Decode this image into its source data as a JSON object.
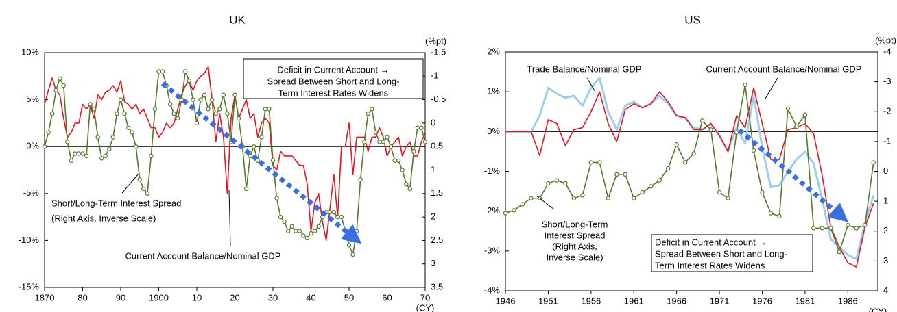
{
  "chart_data": [
    {
      "type": "line",
      "title": "UK",
      "x": [
        1870,
        1871,
        1872,
        1873,
        1874,
        1875,
        1876,
        1877,
        1878,
        1879,
        1880,
        1881,
        1882,
        1883,
        1884,
        1885,
        1886,
        1887,
        1888,
        1889,
        1890,
        1891,
        1892,
        1893,
        1894,
        1895,
        1896,
        1897,
        1898,
        1899,
        1900,
        1901,
        1902,
        1903,
        1904,
        1905,
        1906,
        1907,
        1908,
        1909,
        1910,
        1911,
        1912,
        1913,
        1914,
        1915,
        1916,
        1917,
        1918,
        1919,
        1920,
        1921,
        1922,
        1923,
        1924,
        1925,
        1926,
        1927,
        1928,
        1929,
        1930,
        1931,
        1932,
        1933,
        1934,
        1935,
        1936,
        1937,
        1938,
        1939,
        1940,
        1941,
        1942,
        1943,
        1944,
        1945,
        1946,
        1947,
        1948,
        1949,
        1950,
        1951,
        1952,
        1953,
        1954,
        1955,
        1956,
        1957,
        1958,
        1959,
        1960,
        1961,
        1962,
        1963,
        1964,
        1965,
        1966,
        1967,
        1968,
        1969,
        1970
      ],
      "series": [
        {
          "name": "Current Account Balance/Nominal GDP",
          "color": "#e8141c",
          "values": [
            4.5,
            6,
            7.3,
            6,
            5.5,
            3,
            1,
            1.5,
            2.5,
            2.5,
            4.5,
            4,
            4.5,
            3,
            5.5,
            5,
            5.8,
            6,
            6.5,
            5.8,
            7,
            4.8,
            4.5,
            4,
            4.5,
            3.5,
            4,
            3,
            2,
            2,
            1,
            1.5,
            2.5,
            2,
            2.5,
            4,
            5.5,
            6.5,
            7,
            6,
            7,
            7.5,
            7.8,
            8.5,
            5,
            0.5,
            3.5,
            1,
            -5,
            3,
            5.5,
            3,
            4,
            5,
            3,
            3.5,
            1,
            2.5,
            3,
            2.5,
            -2,
            -2.5,
            -0.5,
            -1,
            -1,
            -1,
            -1.5,
            -2,
            -2,
            -4,
            -9,
            -6,
            -5,
            -8,
            -10,
            -6.5,
            -3,
            -7.5,
            0,
            0,
            2.5,
            -3,
            1,
            1,
            1,
            -0.5,
            1,
            1,
            2,
            1,
            -1,
            0,
            0.5,
            1,
            -1,
            0,
            0.5,
            -1,
            -1,
            0.5,
            1.5
          ]
        },
        {
          "name": "Short/Long-Term Interest Spread",
          "color": "#4e7a2a",
          "axis": "y2",
          "marker": "circle",
          "values": [
            0.5,
            0.2,
            -0.2,
            -0.7,
            -0.95,
            -0.8,
            0.4,
            0.8,
            0.65,
            0.65,
            0.65,
            0.7,
            -0.4,
            -0.3,
            0.3,
            0.75,
            0.7,
            0.55,
            0.3,
            -0.2,
            -0.5,
            -0.2,
            0.1,
            0.2,
            0.5,
            1.2,
            1.4,
            1.5,
            0.7,
            -0.3,
            -1.1,
            -1.1,
            -0.8,
            -0.4,
            -0.2,
            -0.1,
            -0.5,
            -1.1,
            -0.9,
            -0.5,
            0,
            -0.5,
            -0.6,
            -0.3,
            -0.5,
            -0.2,
            -0.3,
            -0.6,
            -0.2,
            0.4,
            -0.6,
            -0.1,
            0.5,
            1.4,
            0.7,
            0.5,
            0.8,
            0.3,
            -0.3,
            -0.3,
            0.8,
            1.6,
            2,
            2.1,
            2.3,
            2.2,
            2.3,
            2.3,
            2.4,
            2.45,
            2.35,
            2.3,
            2.2,
            2,
            1.9,
            1.9,
            1.9,
            2,
            2,
            2.3,
            2.6,
            2.8,
            2.3,
            1.2,
            0.4,
            -0.2,
            -0.3,
            0.2,
            0.4,
            0.4,
            0.3,
            0.5,
            0.8,
            0.8,
            1,
            1.3,
            1.4,
            0.6,
            0.1,
            0.1,
            0.4
          ]
        }
      ],
      "xlim": [
        1870,
        1970
      ],
      "xticks": [
        1870,
        {
          "value": 1880,
          "label": "80"
        },
        {
          "value": 1890,
          "label": "90"
        },
        1900,
        {
          "value": 1910,
          "label": "10"
        },
        {
          "value": 1920,
          "label": "20"
        },
        {
          "value": 1930,
          "label": "30"
        },
        {
          "value": 1940,
          "label": "40"
        },
        {
          "value": 1950,
          "label": "50"
        },
        {
          "value": 1960,
          "label": "60"
        },
        {
          "value": 1970,
          "label": "70"
        }
      ],
      "ylim": [
        -15,
        10
      ],
      "yticks": [
        {
          "value": -15,
          "label": "-15%"
        },
        {
          "value": -10,
          "label": "-10%"
        },
        {
          "value": -5,
          "label": "-5%"
        },
        {
          "value": 0,
          "label": "0%"
        },
        {
          "value": 5,
          "label": "5%"
        },
        {
          "value": 10,
          "label": "10%"
        }
      ],
      "y2lim": [
        3.5,
        -1.5
      ],
      "y2ticks": [
        -1.5,
        -1,
        -0.5,
        0,
        0.5,
        1,
        1.5,
        2,
        2.5,
        3,
        3.5
      ],
      "xlabel": "(CY)",
      "y2label": "(%pt)",
      "zero_line": true,
      "annotations": [
        {
          "lines": [
            "Deficit in Current Account →",
            "Spread Between Short and Long-",
            "Term Interest Rates Widens"
          ]
        },
        {
          "lines": [
            "Short/Long-Term Interest Spread",
            "(Right Axis, Inverse Scale)"
          ]
        },
        {
          "lines": [
            "Current Account Balance/Nominal GDP"
          ]
        }
      ]
    },
    {
      "type": "line",
      "title": "US",
      "x": [
        1946,
        1947,
        1948,
        1949,
        1950,
        1951,
        1952,
        1953,
        1954,
        1955,
        1956,
        1957,
        1958,
        1959,
        1960,
        1961,
        1962,
        1963,
        1964,
        1965,
        1966,
        1967,
        1968,
        1969,
        1970,
        1971,
        1972,
        1973,
        1974,
        1975,
        1976,
        1977,
        1978,
        1979,
        1980,
        1981,
        1982,
        1983,
        1984,
        1985,
        1986,
        1987,
        1988,
        1989
      ],
      "series": [
        {
          "name": "Trade Balance/Nominal GDP",
          "color": "#9fcdee",
          "values": [
            0,
            0,
            0,
            0,
            0.4,
            1.1,
            0.95,
            0.85,
            0.9,
            0.65,
            1.1,
            1.35,
            0.5,
            0.05,
            0.65,
            0.75,
            0.6,
            0.7,
            0.9,
            0.7,
            0.4,
            0.35,
            0.1,
            0.05,
            0.2,
            -0.1,
            -0.5,
            0.1,
            -0.3,
            0.9,
            -0.4,
            -1.4,
            -1.35,
            -1,
            -0.7,
            -0.5,
            -0.8,
            -1.7,
            -2.7,
            -2.9,
            -3.1,
            -3.2,
            -2.3,
            -1.6
          ]
        },
        {
          "name": "Current Account Balance/Nominal GDP",
          "color": "#e8141c",
          "values": [
            0,
            0,
            0,
            0,
            -0.6,
            0.3,
            0.2,
            -0.35,
            0.05,
            0.1,
            0.5,
            1,
            0.2,
            -0.25,
            0.55,
            0.7,
            0.6,
            0.7,
            1,
            0.75,
            0.4,
            0.35,
            0.05,
            0.05,
            0.2,
            -0.1,
            -0.5,
            0.4,
            0.1,
            1.1,
            0.2,
            -0.7,
            -0.7,
            0.05,
            0.1,
            0.2,
            -0.05,
            -1.1,
            -2.4,
            -2.9,
            -3.3,
            -3.4,
            -2.4,
            -1.8
          ]
        },
        {
          "name": "Short/Long-Term Interest Spread",
          "color": "#4e7a2a",
          "axis": "y2",
          "marker": "circle",
          "values": [
            1.4,
            1.3,
            1.1,
            0.9,
            0.9,
            0.4,
            0.3,
            0.4,
            0.9,
            0.8,
            -0.3,
            -0.3,
            0.9,
            0.1,
            0.1,
            0.9,
            0.7,
            0.5,
            0.3,
            -0.1,
            -0.9,
            -0.3,
            -0.6,
            -1.7,
            -1.4,
            0.7,
            0.9,
            -1.3,
            -2.9,
            -0.7,
            0.7,
            1.4,
            1.5,
            -2.1,
            -1.5,
            -1.9,
            1.9,
            1.9,
            1.9,
            2.7,
            1.8,
            1.9,
            1.8,
            -0.3
          ]
        }
      ],
      "xlim": [
        1946,
        1989.5
      ],
      "xticks": [
        1946,
        1951,
        1956,
        1961,
        1966,
        1971,
        1976,
        1981,
        1986
      ],
      "ylim": [
        -4,
        2
      ],
      "yticks": [
        {
          "value": -4,
          "label": "-4%"
        },
        {
          "value": -3,
          "label": "-3%"
        },
        {
          "value": -2,
          "label": "-2%"
        },
        {
          "value": -1,
          "label": "-1%"
        },
        {
          "value": 0,
          "label": "0%"
        },
        {
          "value": 1,
          "label": "1%"
        },
        {
          "value": 2,
          "label": "2%"
        }
      ],
      "y2lim": [
        4,
        -4
      ],
      "y2ticks": [
        -4,
        -3,
        -2,
        -1,
        0,
        1,
        2,
        3,
        4
      ],
      "xlabel": "(CY)",
      "y2label": "(%pt)",
      "zero_line": true,
      "annotations": [
        {
          "lines": [
            "Trade Balance/Nominal GDP"
          ]
        },
        {
          "lines": [
            "Current Account Balance/Nominal GDP"
          ]
        },
        {
          "lines": [
            "Short/Long-Term",
            "Interest Spread",
            "(Right Axis,",
            "Inverse Scale)"
          ]
        },
        {
          "lines": [
            "Deficit in Current Account →",
            "Spread Between Short and Long-",
            "Term Interest Rates Widens"
          ]
        }
      ]
    }
  ]
}
